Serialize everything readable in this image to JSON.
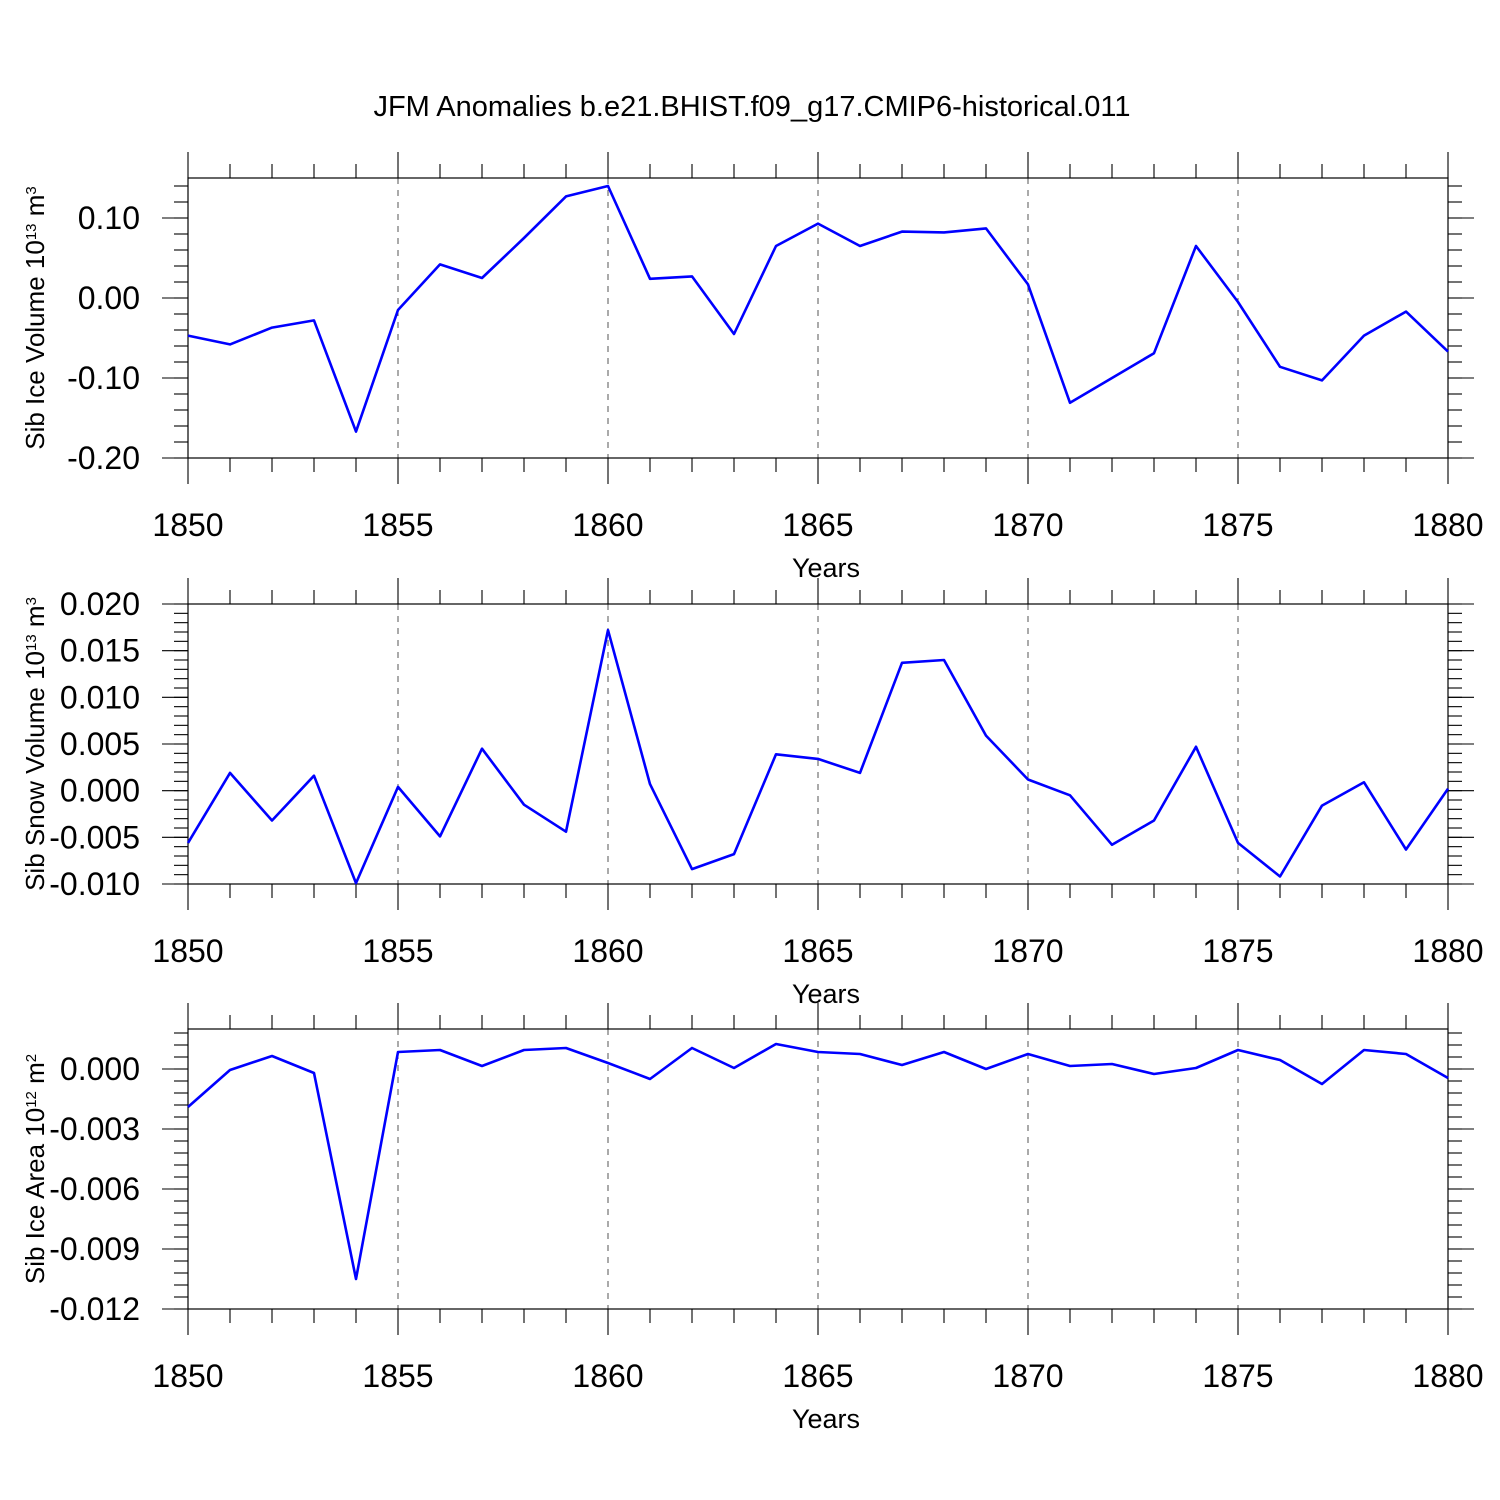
{
  "title": "JFM Anomalies b.e21.BHIST.f09_g17.CMIP6-historical.011",
  "chart_data": [
    {
      "type": "line",
      "ylabel_main": "Sib Ice Volume 10",
      "ylabel_exp": "13",
      "ylabel_unit": " m",
      "ylabel_unit_exp": "3",
      "xlabel": "Years",
      "xlim": [
        1850,
        1880
      ],
      "ylim": [
        -0.2,
        0.15
      ],
      "x_ticks": [
        "1850",
        "1855",
        "1860",
        "1865",
        "1870",
        "1875",
        "1880"
      ],
      "y_ticks": [
        {
          "value": 0.1,
          "label": "0.10"
        },
        {
          "value": 0.0,
          "label": "0.00"
        },
        {
          "value": -0.1,
          "label": "-0.10"
        },
        {
          "value": -0.2,
          "label": "-0.20"
        }
      ],
      "y_minor_step": 0.02,
      "x": [
        1850,
        1851,
        1852,
        1853,
        1854,
        1855,
        1856,
        1857,
        1858,
        1859,
        1860,
        1861,
        1862,
        1863,
        1864,
        1865,
        1866,
        1867,
        1868,
        1869,
        1870,
        1871,
        1872,
        1873,
        1874,
        1875,
        1876,
        1877,
        1878,
        1879,
        1880
      ],
      "values": [
        -0.047,
        -0.058,
        -0.037,
        -0.028,
        -0.167,
        -0.015,
        0.042,
        0.025,
        0.075,
        0.127,
        0.14,
        0.024,
        0.027,
        -0.045,
        0.065,
        0.093,
        0.065,
        0.083,
        0.082,
        0.087,
        0.017,
        -0.131,
        -0.1,
        -0.069,
        0.065,
        -0.005,
        -0.086,
        -0.103,
        -0.047,
        -0.017,
        -0.067
      ]
    },
    {
      "type": "line",
      "ylabel_main": "Sib Snow Volume 10",
      "ylabel_exp": "13",
      "ylabel_unit": " m",
      "ylabel_unit_exp": "3",
      "xlabel": "Years",
      "xlim": [
        1850,
        1880
      ],
      "ylim": [
        -0.01,
        0.02
      ],
      "x_ticks": [
        "1850",
        "1855",
        "1860",
        "1865",
        "1870",
        "1875",
        "1880"
      ],
      "y_ticks": [
        {
          "value": 0.02,
          "label": "0.020"
        },
        {
          "value": 0.015,
          "label": "0.015"
        },
        {
          "value": 0.01,
          "label": "0.010"
        },
        {
          "value": 0.005,
          "label": "0.005"
        },
        {
          "value": 0.0,
          "label": "0.000"
        },
        {
          "value": -0.005,
          "label": "-0.005"
        },
        {
          "value": -0.01,
          "label": "-0.010"
        }
      ],
      "y_minor_step": 0.001,
      "x": [
        1850,
        1851,
        1852,
        1853,
        1854,
        1855,
        1856,
        1857,
        1858,
        1859,
        1860,
        1861,
        1862,
        1863,
        1864,
        1865,
        1866,
        1867,
        1868,
        1869,
        1870,
        1871,
        1872,
        1873,
        1874,
        1875,
        1876,
        1877,
        1878,
        1879,
        1880
      ],
      "values": [
        -0.0056,
        0.0019,
        -0.0032,
        0.0016,
        -0.0099,
        0.0004,
        -0.0049,
        0.0045,
        -0.0015,
        -0.0044,
        0.0172,
        0.0007,
        -0.0084,
        -0.0068,
        0.0039,
        0.0034,
        0.0019,
        0.0137,
        0.014,
        0.0059,
        0.0012,
        -0.0005,
        -0.0058,
        -0.0032,
        0.0047,
        -0.0056,
        -0.0092,
        -0.0016,
        0.0009,
        -0.0063,
        0.0002
      ]
    },
    {
      "type": "line",
      "ylabel_main": "Sib Ice Area 10",
      "ylabel_exp": "12",
      "ylabel_unit": " m",
      "ylabel_unit_exp": "2",
      "xlabel": "Years",
      "xlim": [
        1850,
        1880
      ],
      "ylim": [
        -0.012,
        0.002
      ],
      "x_ticks": [
        "1850",
        "1855",
        "1860",
        "1865",
        "1870",
        "1875",
        "1880"
      ],
      "y_ticks": [
        {
          "value": 0.0,
          "label": "0.000"
        },
        {
          "value": -0.003,
          "label": "-0.003"
        },
        {
          "value": -0.006,
          "label": "-0.006"
        },
        {
          "value": -0.009,
          "label": "-0.009"
        },
        {
          "value": -0.012,
          "label": "-0.012"
        }
      ],
      "y_minor_step": 0.0006,
      "x": [
        1850,
        1851,
        1852,
        1853,
        1854,
        1855,
        1856,
        1857,
        1858,
        1859,
        1860,
        1861,
        1862,
        1863,
        1864,
        1865,
        1866,
        1867,
        1868,
        1869,
        1870,
        1871,
        1872,
        1873,
        1874,
        1875,
        1876,
        1877,
        1878,
        1879,
        1880
      ],
      "values": [
        -0.0019,
        -5e-05,
        0.00065,
        -0.0002,
        -0.0105,
        0.00085,
        0.00095,
        0.00015,
        0.00095,
        0.00105,
        0.0003,
        -0.0005,
        0.00105,
        5e-05,
        0.00125,
        0.00085,
        0.00075,
        0.0002,
        0.00085,
        0.0,
        0.00075,
        0.00015,
        0.00025,
        -0.00025,
        5e-05,
        0.00095,
        0.00045,
        -0.00075,
        0.00095,
        0.00075,
        -0.00045
      ]
    }
  ]
}
